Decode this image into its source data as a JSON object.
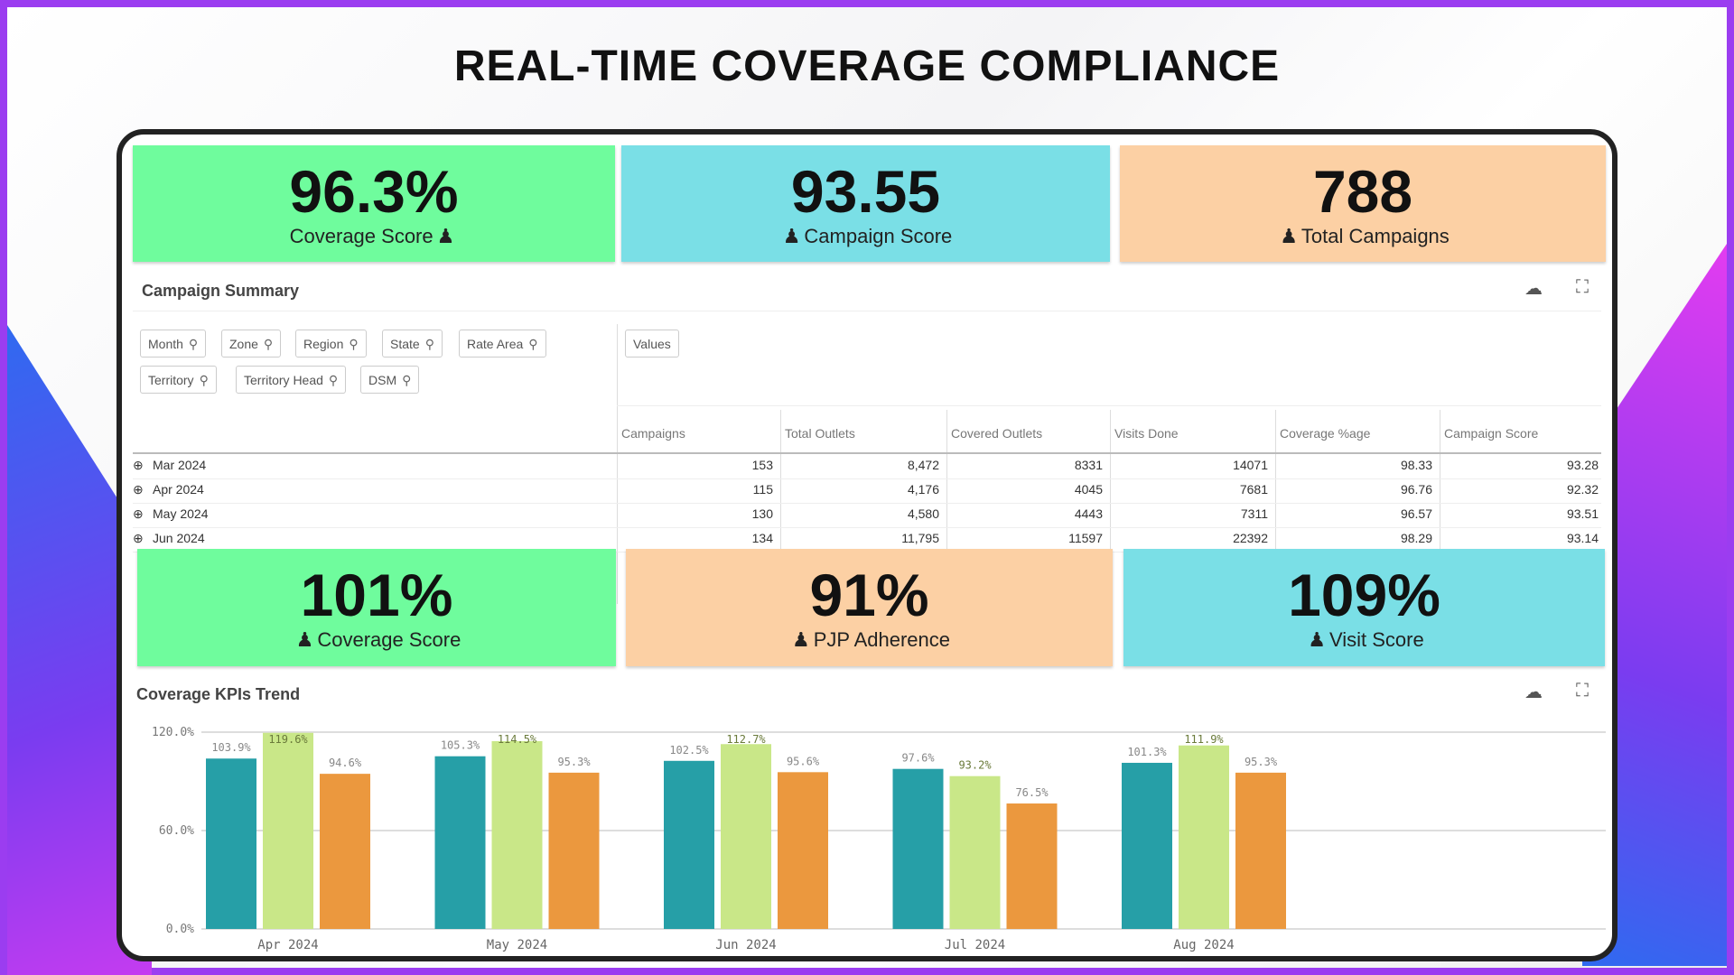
{
  "page_title": "REAL-TIME COVERAGE COMPLIANCE",
  "kpis_top": [
    {
      "value": "96.3%",
      "label": "Coverage Score",
      "color": "#6ffc9d",
      "icon": "person-icon",
      "icon_position": "after"
    },
    {
      "value": "93.55",
      "label": "Campaign Score",
      "color": "#7adfe6",
      "icon": "person-icon",
      "icon_position": "before"
    },
    {
      "value": "788",
      "label": "Total Campaigns",
      "color": "#fcd0a4",
      "icon": "person-icon",
      "icon_position": "before"
    }
  ],
  "campaign_summary": {
    "title": "Campaign Summary",
    "filters": [
      "Month",
      "Zone",
      "Region",
      "State",
      "Rate Area",
      "Territory",
      "Territory Head",
      "DSM"
    ],
    "values_button": "Values",
    "columns": [
      "Campaigns",
      "Total Outlets",
      "Covered Outlets",
      "Visits Done",
      "Coverage %age",
      "Campaign Score"
    ],
    "rows": [
      {
        "label": "Mar 2024",
        "cells": [
          "153",
          "8,472",
          "8331",
          "14071",
          "98.33",
          "93.28"
        ]
      },
      {
        "label": "Apr 2024",
        "cells": [
          "115",
          "4,176",
          "4045",
          "7681",
          "96.76",
          "92.32"
        ]
      },
      {
        "label": "May 2024",
        "cells": [
          "130",
          "4,580",
          "4443",
          "7311",
          "96.57",
          "93.51"
        ]
      },
      {
        "label": "Jun 2024",
        "cells": [
          "134",
          "11,795",
          "11597",
          "22392",
          "98.29",
          "93.14"
        ]
      }
    ]
  },
  "kpis_bottom": [
    {
      "value": "101%",
      "label": "Coverage Score",
      "color": "#6ffc9d",
      "icon": "person-icon"
    },
    {
      "value": "91%",
      "label": "PJP Adherence",
      "color": "#fcd0a4",
      "icon": "person-icon"
    },
    {
      "value": "109%",
      "label": "Visit Score",
      "color": "#7adfe6",
      "icon": "person-icon"
    }
  ],
  "chart_title": "Coverage KPIs Trend",
  "chart_data": {
    "type": "bar",
    "categories": [
      "Apr 2024",
      "May 2024",
      "Jun 2024",
      "Jul 2024",
      "Aug 2024"
    ],
    "series": [
      {
        "values": [
          103.9,
          105.3,
          102.5,
          97.6,
          101.3
        ],
        "color": "#269fa7"
      },
      {
        "values": [
          119.6,
          114.5,
          112.7,
          93.2,
          111.9
        ],
        "color": "#c9e788"
      },
      {
        "values": [
          94.6,
          95.3,
          95.6,
          76.5,
          95.3
        ],
        "color": "#eb983e"
      }
    ],
    "yticks": [
      "0.0%",
      "60.0%",
      "120.0%"
    ],
    "ylim": [
      0,
      120
    ],
    "grid": true,
    "data_labels": [
      "103.9%",
      "119.6%",
      "94.6%",
      "105.3%",
      "114.5%",
      "95.3%",
      "102.5%",
      "112.7%",
      "95.6%",
      "97.6%",
      "93.2%",
      "76.5%",
      "101.3%",
      "111.9%",
      "95.3%"
    ]
  }
}
